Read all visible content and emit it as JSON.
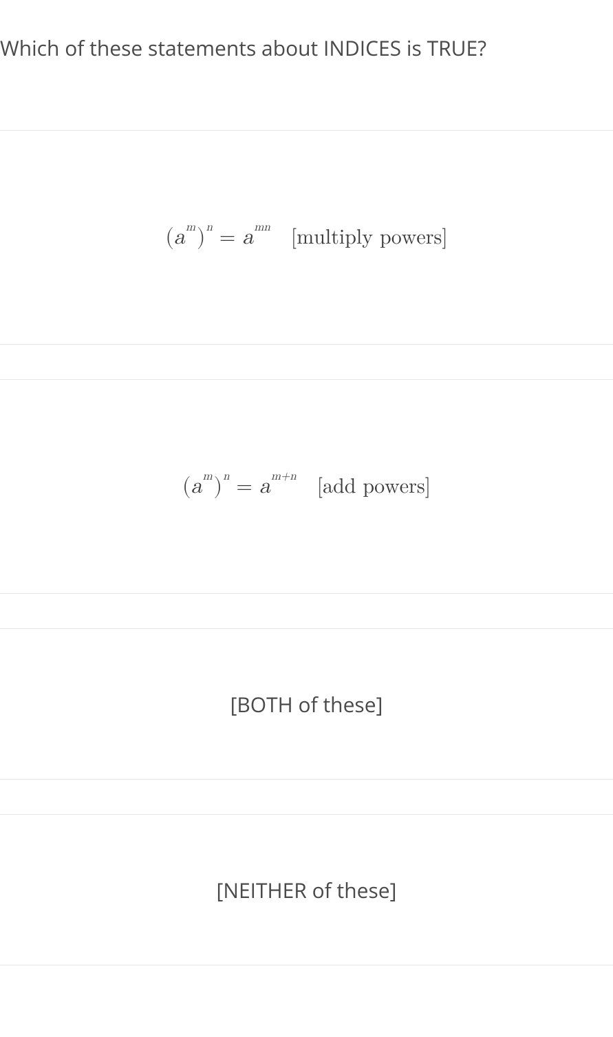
{
  "question": "Which of these statements about INDICES is TRUE?",
  "options": [
    {
      "hasFormula": true,
      "exponent": "mn",
      "label": "[multiply powers]"
    },
    {
      "hasFormula": true,
      "exponent": "m+n",
      "label": "[add powers]"
    },
    {
      "hasFormula": false,
      "label": "[BOTH of these]"
    },
    {
      "hasFormula": false,
      "label": "[NEITHER of these]"
    }
  ],
  "formula": {
    "base": "a",
    "innerExp": "m",
    "outerExp": "n"
  },
  "style": {
    "text_color": "#4a4a4a",
    "border_color": "#e6e6e6",
    "background": "#ffffff",
    "question_fontsize": 30,
    "option_fontsize": 30,
    "math_fontsize": 30,
    "sup_fontsize": 17,
    "tall_option_height": 312,
    "short_option_height": 220,
    "gap_height": 50
  }
}
